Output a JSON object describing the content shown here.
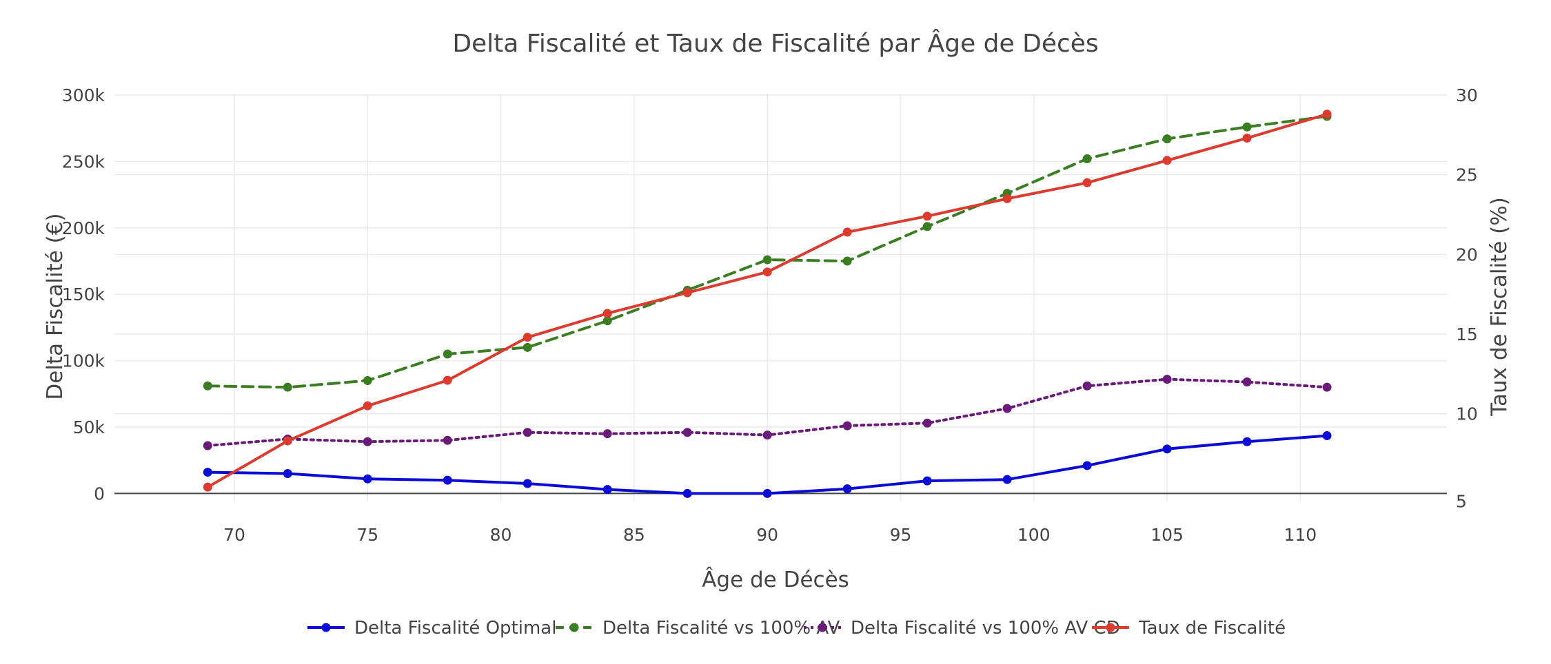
{
  "chart_data": {
    "type": "line",
    "title": "Delta Fiscalité et Taux de Fiscalité par Âge de Décès",
    "xlabel": "Âge de Décès",
    "ylabel": "Delta Fiscalité (€)",
    "y2label": "Taux de Fiscalité (%)",
    "xlim": [
      65.5,
      115.5
    ],
    "ylim": [
      -6000,
      300000
    ],
    "y2lim": [
      5,
      30
    ],
    "x_ticks": [
      70,
      75,
      80,
      85,
      90,
      95,
      100,
      105,
      110
    ],
    "y_ticks": [
      0,
      50000,
      100000,
      150000,
      200000,
      250000,
      300000
    ],
    "y_tick_labels": [
      "0",
      "50k",
      "100k",
      "150k",
      "200k",
      "250k",
      "300k"
    ],
    "y2_ticks": [
      5,
      10,
      15,
      20,
      25,
      30
    ],
    "grid": true,
    "legend_position": "bottom-center",
    "x": [
      69,
      72,
      75,
      78,
      81,
      84,
      87,
      90,
      93,
      96,
      99,
      102,
      105,
      108,
      111
    ],
    "series": [
      {
        "name": "Delta Fiscalité Optimal",
        "axis": "y",
        "color": "#0b0bd6",
        "dash": "solid",
        "values": [
          16000,
          15000,
          11000,
          10000,
          7500,
          3000,
          0,
          0,
          3500,
          9500,
          10500,
          21000,
          33500,
          39000,
          43500
        ]
      },
      {
        "name": "Delta Fiscalité vs 100% AV",
        "axis": "y",
        "color": "#3a7d22",
        "dash": "dashed",
        "values": [
          81000,
          80000,
          85000,
          105000,
          110000,
          130000,
          153000,
          176000,
          175000,
          201000,
          226000,
          252000,
          267000,
          276000,
          284000
        ]
      },
      {
        "name": "Delta Fiscalité vs 100% AV CD",
        "axis": "y",
        "color": "#6a1b7a",
        "dash": "dotted",
        "values": [
          36000,
          41000,
          39000,
          40000,
          46000,
          45000,
          46000,
          44000,
          51000,
          53000,
          64000,
          81000,
          86000,
          84000,
          80000
        ]
      },
      {
        "name": "Taux de Fiscalité",
        "axis": "y2",
        "color": "#dc3b2f",
        "dash": "solid",
        "values": [
          5.4,
          8.3,
          10.5,
          12.1,
          14.8,
          16.3,
          17.6,
          18.9,
          21.4,
          22.4,
          23.5,
          24.5,
          25.9,
          27.3,
          28.8
        ]
      }
    ]
  }
}
